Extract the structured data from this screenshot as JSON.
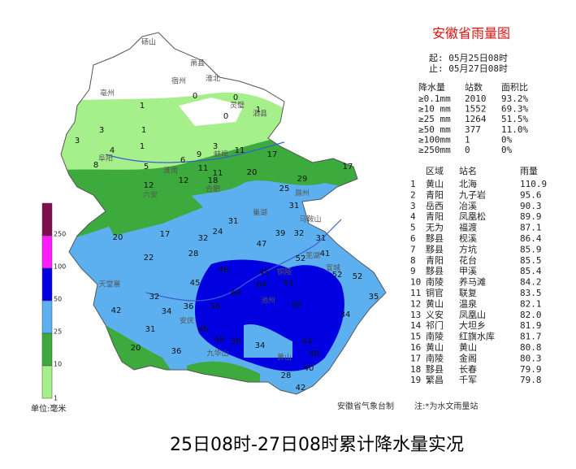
{
  "header": {
    "title": "安徽省雨量图",
    "start": "起: 05月25日08时",
    "end": "止: 05月27日08时"
  },
  "stats": {
    "columns": [
      "降水量",
      "站数",
      "面积比"
    ],
    "rows": [
      [
        "≥0.1mm",
        "2010",
        "93.2%"
      ],
      [
        "≥10 mm",
        "1552",
        "69.3%"
      ],
      [
        "≥25 mm",
        "1264",
        "51.5%"
      ],
      [
        "≥50 mm",
        "377",
        "11.0%"
      ],
      [
        "≥100mm",
        "1",
        "0%"
      ],
      [
        "≥250mm",
        "0",
        "0%"
      ]
    ]
  },
  "stations": {
    "columns": [
      "区域",
      "站名",
      "雨量"
    ],
    "rows": [
      [
        "1",
        "黄山",
        "北海",
        "110.9"
      ],
      [
        "2",
        "青阳",
        "九子岩",
        "95.6"
      ],
      [
        "3",
        "岳西",
        "冶溪",
        "90.3"
      ],
      [
        "4",
        "青阳",
        "凤凰松",
        "89.9"
      ],
      [
        "5",
        "无为",
        "福渡",
        "87.1"
      ],
      [
        "6",
        "黟县",
        "枧溪",
        "86.4"
      ],
      [
        "7",
        "黟县",
        "方坑",
        "85.9"
      ],
      [
        "8",
        "青阳",
        "花台",
        "85.5"
      ],
      [
        "9",
        "黟县",
        "甲溪",
        "85.4"
      ],
      [
        "10",
        "南陵",
        "养马滩",
        "84.2"
      ],
      [
        "11",
        "铜官",
        "联复",
        "83.5"
      ],
      [
        "12",
        "黄山",
        "温泉",
        "82.1"
      ],
      [
        "13",
        "义安",
        "凤凰山",
        "82.0"
      ],
      [
        "14",
        "祁门",
        "大坦乡",
        "81.9"
      ],
      [
        "15",
        "南陵",
        "红旗水库",
        "81.7"
      ],
      [
        "16",
        "黄山",
        "黄山",
        "80.8"
      ],
      [
        "17",
        "南陵",
        "金阁",
        "80.3"
      ],
      [
        "18",
        "黟县",
        "长春",
        "79.9"
      ],
      [
        "19",
        "繁昌",
        "千军",
        "79.8"
      ]
    ]
  },
  "legend": {
    "ticks": [
      250,
      100,
      50,
      25,
      10,
      1
    ],
    "colors": [
      "#7f0f4a",
      "#ff1cff",
      "#0000e0",
      "#5cb0f0",
      "#3caa3c",
      "#a6f08c"
    ],
    "unit": "单位:毫米"
  },
  "map_labels": [
    "1",
    "0",
    "0",
    "1",
    "0",
    "3",
    "1",
    "3",
    "1",
    "4",
    "3",
    "9",
    "11",
    "17",
    "6",
    "8",
    "5",
    "11",
    "11",
    "18",
    "12",
    "20",
    "17",
    "29",
    "12",
    "25",
    "31",
    "31",
    "24",
    "32",
    "20",
    "17",
    "47",
    "39",
    "32",
    "31",
    "28",
    "22",
    "41",
    "52",
    "48",
    "45",
    "52",
    "52",
    "45",
    "64",
    "53",
    "35",
    "32",
    "42",
    "34",
    "36",
    "56",
    "49",
    "60",
    "34",
    "31",
    "46",
    "48",
    "20",
    "36",
    "38",
    "34",
    "48",
    "44",
    "40",
    "28",
    "42"
  ],
  "places": [
    "砀山",
    "萧县",
    "淮北",
    "亳州",
    "宿州",
    "灵璧",
    "泗县",
    "阜阳",
    "蚌埠",
    "淮南",
    "六安",
    "合肥",
    "巢湖",
    "滁州",
    "马鞍山",
    "芜湖",
    "铜陵",
    "池州",
    "安庆",
    "宣城",
    "黄山",
    "九华山",
    "天堂寨"
  ],
  "footer": {
    "maker": "安徽省气象台制",
    "note": "注:*为水文雨量站"
  },
  "caption": "25日08时-27日08时累计降水量实况"
}
